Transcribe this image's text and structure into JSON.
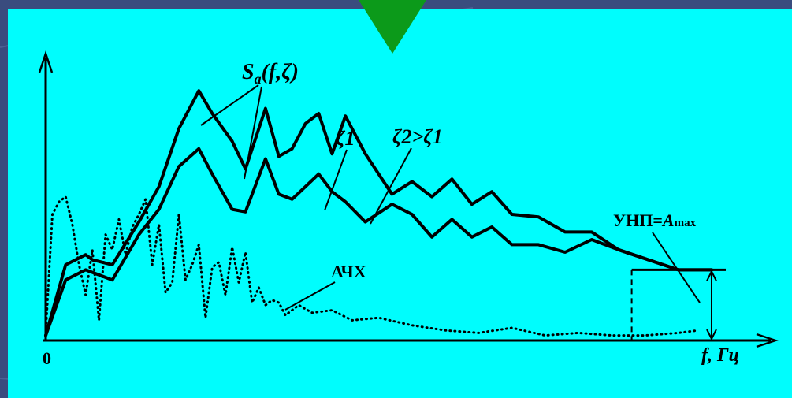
{
  "colors": {
    "slide_bg": "#3a4c7e",
    "panel_bg": "#00fdfd",
    "marker": "#0c9a1a",
    "ink": "#000000"
  },
  "marker_icon": "down-triangle-icon",
  "chart_data": {
    "type": "line",
    "title": "",
    "xlabel": "f,  Гц",
    "ylabel": "",
    "origin_label": "0",
    "grid": false,
    "x_ticks": [],
    "y_ticks": [],
    "xlim": [
      0,
      100
    ],
    "ylim": [
      0,
      100
    ],
    "series": [
      {
        "name": "ζ1",
        "style": "solid",
        "x": [
          0,
          3,
          6,
          7,
          10,
          14,
          17,
          20,
          23,
          25,
          28,
          30,
          33,
          35,
          37,
          39,
          41,
          43,
          45,
          48,
          52,
          55,
          58,
          61,
          64,
          67,
          70,
          74,
          78,
          82,
          86,
          95,
          100
        ],
        "y": [
          2,
          30,
          34,
          32,
          30,
          47,
          61,
          84,
          99,
          90,
          79,
          68,
          92,
          73,
          76,
          86,
          90,
          74,
          89,
          74,
          58,
          63,
          57,
          64,
          54,
          59,
          50,
          49,
          43,
          43,
          36,
          28,
          28
        ]
      },
      {
        "name": "ζ2>ζ1",
        "style": "solid",
        "x": [
          0,
          3,
          6,
          7,
          10,
          14,
          17,
          20,
          23,
          25,
          28,
          30,
          33,
          35,
          37,
          39,
          41,
          43,
          45,
          48,
          52,
          55,
          58,
          61,
          64,
          67,
          70,
          74,
          78,
          82,
          86,
          95,
          100
        ],
        "y": [
          2,
          24,
          28,
          27,
          24,
          42,
          52,
          69,
          76,
          66,
          52,
          51,
          72,
          58,
          56,
          61,
          66,
          59,
          55,
          47,
          54,
          50,
          41,
          48,
          41,
          45,
          38,
          38,
          35,
          40,
          36,
          28,
          28
        ]
      },
      {
        "name": "АЧХ",
        "style": "dotted",
        "x": [
          0,
          1,
          2,
          3,
          4,
          5,
          6,
          7,
          8,
          9,
          10,
          11,
          12,
          13,
          14,
          15,
          16,
          17,
          18,
          19,
          20,
          21,
          22,
          23,
          24,
          25,
          26,
          27,
          28,
          29,
          30,
          31,
          32,
          33,
          34,
          35,
          36,
          38,
          40,
          43,
          46,
          50,
          55,
          60,
          65,
          70,
          75,
          80,
          85,
          90,
          95,
          98
        ],
        "y": [
          3,
          50,
          55,
          57,
          46,
          30,
          18,
          36,
          8,
          42,
          36,
          48,
          34,
          45,
          50,
          56,
          30,
          46,
          19,
          23,
          50,
          24,
          30,
          38,
          9,
          29,
          31,
          18,
          37,
          23,
          35,
          15,
          21,
          14,
          16,
          15,
          10,
          14,
          11,
          12,
          8,
          9,
          6,
          4,
          3,
          5,
          2,
          3,
          2,
          2,
          3,
          4
        ]
      }
    ],
    "annotations": {
      "sa": "S",
      "sa_sub": "a",
      "sa_args": "(f,ζ)",
      "z1": "ζ1",
      "z2": "ζ2>ζ1",
      "unp_prefix": "УНП=",
      "unp_var": "A",
      "unp_sub": "max",
      "achx": "АЧХ"
    },
    "unp_level": 28
  }
}
